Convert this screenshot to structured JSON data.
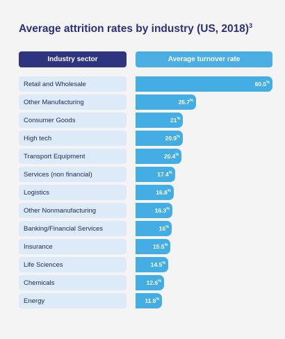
{
  "chart_data": {
    "type": "bar",
    "orientation": "horizontal",
    "title": "Average attrition rates by industry (US, 2018)",
    "title_superscript": "3",
    "columns": [
      "Industry sector",
      "Average turnover rate"
    ],
    "categories": [
      "Retail and Wholesale",
      "Other Manufacturing",
      "Consumer Goods",
      "High tech",
      "Transport Equipment",
      "Services (non financial)",
      "Logistics",
      "Other Nonmanufacturing",
      "Banking/Financial Services",
      "Insurance",
      "Life Sciences",
      "Chemicals",
      "Energy"
    ],
    "values": [
      60.5,
      26.7,
      21,
      20.9,
      20.4,
      17.4,
      16.8,
      16.3,
      16,
      15.5,
      14.5,
      12.6,
      11.8
    ],
    "value_suffix": "%",
    "xlim": [
      0,
      60.5
    ],
    "colors": {
      "title": "#2b2f7e",
      "header_left": "#2e3480",
      "header_right": "#4aaee3",
      "bar": "#44aee4",
      "label_bg": "#ddebf8"
    }
  }
}
